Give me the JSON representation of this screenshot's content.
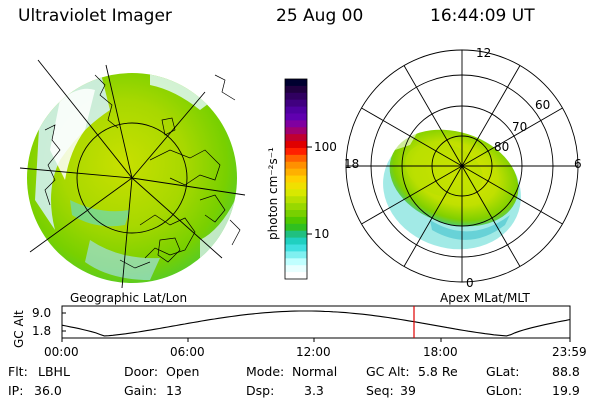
{
  "header": {
    "instrument": "Ultraviolet Imager",
    "date": "25 Aug 00",
    "time": "16:44:09 UT"
  },
  "colorbar": {
    "unit_label": "photon cm⁻²s⁻¹",
    "ticks": [
      "100",
      "10"
    ],
    "colors": [
      "#000030",
      "#200040",
      "#300060",
      "#400080",
      "#5000a0",
      "#6000b0",
      "#8000a0",
      "#a00070",
      "#c00030",
      "#e00000",
      "#ff2000",
      "#ff6000",
      "#ff9000",
      "#ffb000",
      "#ffd000",
      "#f0e000",
      "#d8e800",
      "#b8e000",
      "#98d800",
      "#78d000",
      "#50c800",
      "#30c020",
      "#20c080",
      "#20d0c0",
      "#40e0e0",
      "#80f0f0",
      "#c0ffff",
      "#e8ffff",
      "#ffffff"
    ]
  },
  "geo_panel": {
    "label": "Geographic Lat/Lon"
  },
  "polar_panel": {
    "label": "Apex MLat/MLT",
    "mlt_labels": {
      "top": "12",
      "bottom": "0",
      "left": "18",
      "right": "6"
    },
    "lat_labels": [
      "80",
      "70",
      "60"
    ]
  },
  "altitude_plot": {
    "ylabel": "GC Alt",
    "y_ticks": [
      "9.0",
      "1.8"
    ],
    "time_ticks": [
      "00:00",
      "06:00",
      "12:00",
      "18:00",
      "23:59"
    ],
    "marker_color": "#e00000"
  },
  "status": {
    "flt_label": "Flt:",
    "flt_value": "LBHL",
    "ip_label": "IP:",
    "ip_value": "36.0",
    "door_label": "Door:",
    "door_value": "Open",
    "gain_label": "Gain:",
    "gain_value": "13",
    "mode_label": "Mode:",
    "mode_value": "Normal",
    "dsp_label": "Dsp:",
    "dsp_value": "3.3",
    "gcalt_label": "GC Alt:",
    "gcalt_value": "5.8 Re",
    "seq_label": "Seq:",
    "seq_value": "39",
    "glat_label": "GLat:",
    "glat_value": "88.8",
    "glon_label": "GLon:",
    "glon_value": "19.9"
  }
}
